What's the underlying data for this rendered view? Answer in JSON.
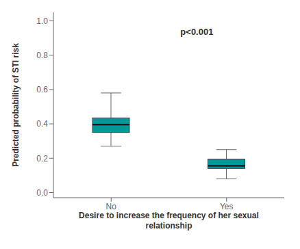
{
  "chart_data": {
    "type": "box",
    "categories": [
      "No",
      "Yes"
    ],
    "whisker_low": [
      0.27,
      0.08
    ],
    "q1": [
      0.35,
      0.14
    ],
    "median": [
      0.395,
      0.155
    ],
    "q3": [
      0.435,
      0.195
    ],
    "whisker_high": [
      0.58,
      0.25
    ],
    "color": "#00999A",
    "xlabel": "Desire to increase the frequency of her sexual\nrelationship",
    "ylabel": "Predicted probability of STI risk",
    "annotation": "p<0.001",
    "ylim": [
      -0.03,
      1.05
    ],
    "yticks": [
      {
        "value": 0,
        "label": "0.0"
      },
      0.2,
      0.4,
      0.6,
      0.8,
      {
        "value": 1,
        "label": "1.0"
      }
    ]
  }
}
